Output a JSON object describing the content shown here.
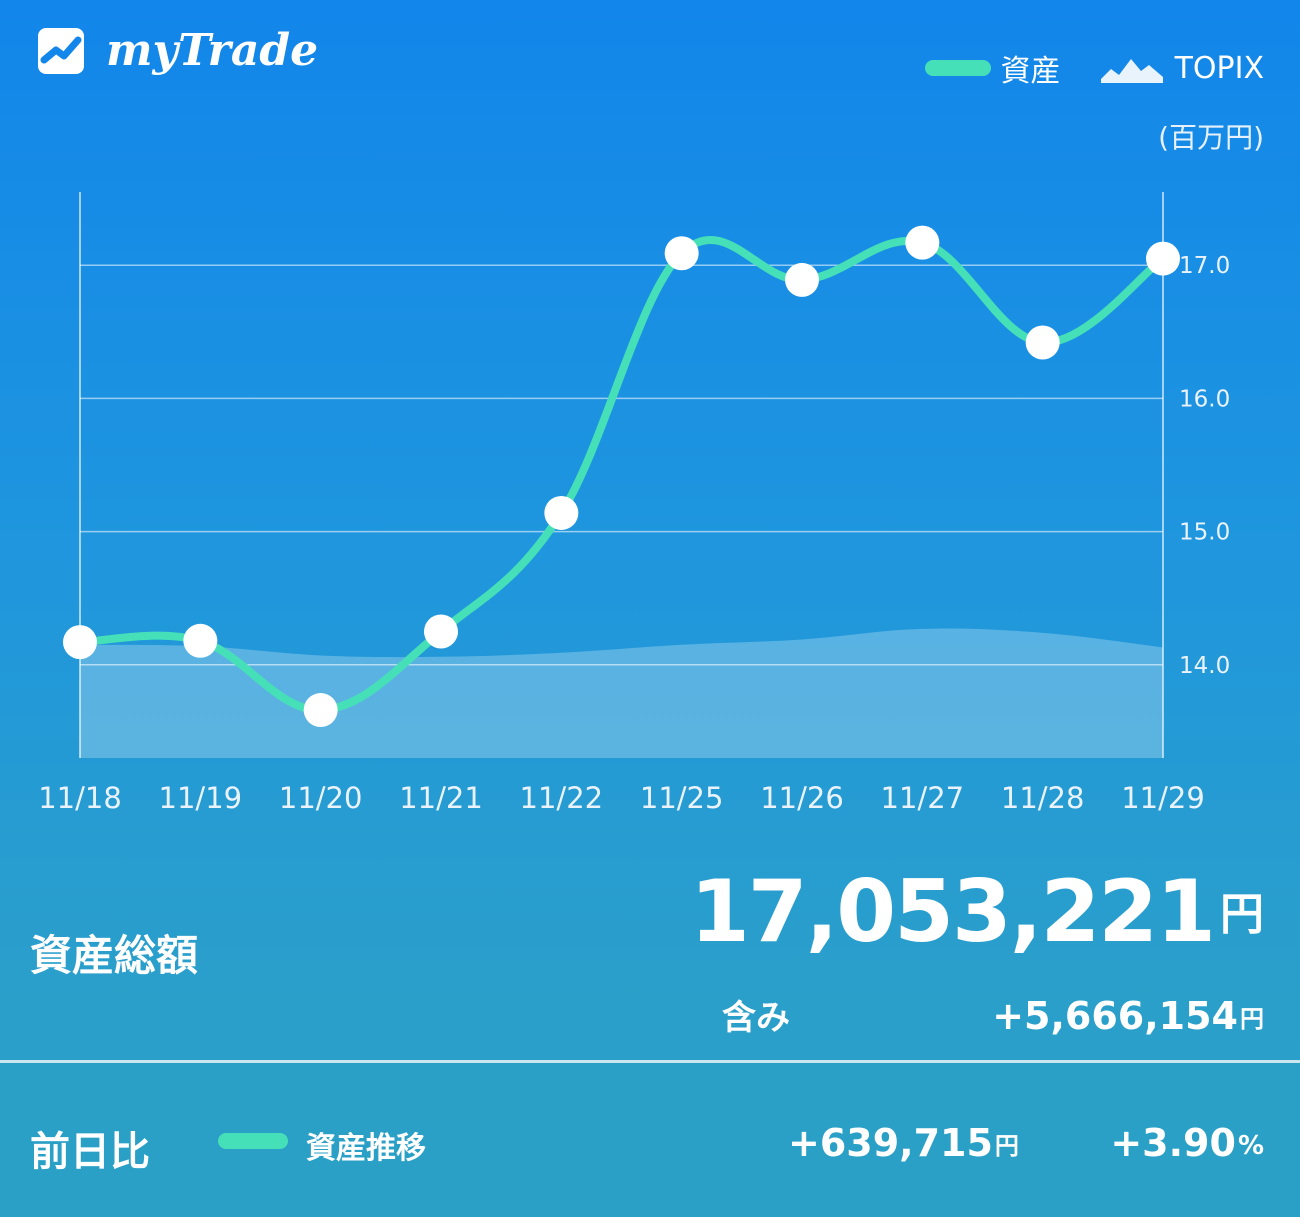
{
  "header": {
    "app_name": "myTrade",
    "legend_asset": "資産",
    "legend_topix": "TOPIX",
    "unit": "(百万円)"
  },
  "colors": {
    "asset_line": "#46e0b8",
    "topix_area": "rgba(255,255,255,0.25)"
  },
  "chart_data": {
    "type": "line",
    "categories": [
      "11/18",
      "11/19",
      "11/20",
      "11/21",
      "11/22",
      "11/25",
      "11/26",
      "11/27",
      "11/28",
      "11/29"
    ],
    "series": [
      {
        "name": "資産",
        "values": [
          14.17,
          14.18,
          13.66,
          14.25,
          15.14,
          17.09,
          16.89,
          17.17,
          16.42,
          17.05
        ]
      },
      {
        "name": "TOPIX",
        "values": [
          14.15,
          14.14,
          14.07,
          14.06,
          14.09,
          14.15,
          14.19,
          14.27,
          14.24,
          14.13
        ]
      }
    ],
    "y_ticks": [
      "14.0",
      "15.0",
      "16.0",
      "17.0"
    ],
    "ylim": [
      13.3,
      17.55
    ],
    "grid": true
  },
  "summary": {
    "total_label": "資産総額",
    "total_value": "17,053,221",
    "total_unit": "円",
    "includes_label": "含み",
    "includes_value": "+5,666,154",
    "includes_unit": "円"
  },
  "compare": {
    "label": "前日比",
    "trend_label": "資産推移",
    "diff_value": "+639,715",
    "diff_unit": "円",
    "pct_value": "+3.90",
    "pct_unit": "%"
  }
}
